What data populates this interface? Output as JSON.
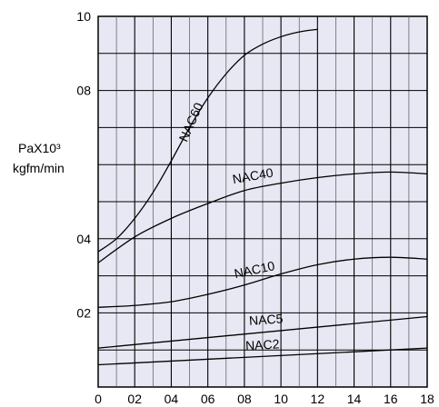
{
  "chart_data": {
    "type": "line",
    "title": "",
    "xlabel": "",
    "ylabel": "PaX10³",
    "ylabel_unit": "kgfm/min",
    "xlim": [
      0,
      18
    ],
    "ylim": [
      0,
      10
    ],
    "grid": true,
    "background_color": "#e8e8f4",
    "x_ticks": [
      {
        "value": 0,
        "label": "0"
      },
      {
        "value": 2,
        "label": "02"
      },
      {
        "value": 4,
        "label": "04"
      },
      {
        "value": 6,
        "label": "06"
      },
      {
        "value": 8,
        "label": "08"
      },
      {
        "value": 10,
        "label": "10"
      },
      {
        "value": 12,
        "label": "12"
      },
      {
        "value": 14,
        "label": "14"
      },
      {
        "value": 16,
        "label": "16"
      },
      {
        "value": 18,
        "label": "18"
      }
    ],
    "y_ticks": [
      {
        "value": 2,
        "label": "02"
      },
      {
        "value": 4,
        "label": "04"
      },
      {
        "value": 8,
        "label": "08"
      },
      {
        "value": 10,
        "label": "10"
      }
    ],
    "series": [
      {
        "name": "NAC60",
        "x": [
          0,
          1,
          2,
          3,
          4,
          5,
          6,
          7,
          8,
          9,
          10,
          11,
          12
        ],
        "y": [
          3.65,
          4.0,
          4.55,
          5.25,
          6.1,
          7.0,
          7.8,
          8.45,
          8.95,
          9.25,
          9.45,
          9.58,
          9.65
        ]
      },
      {
        "name": "NAC40",
        "x": [
          0,
          2,
          4,
          6,
          8,
          10,
          12,
          14,
          16,
          18
        ],
        "y": [
          3.35,
          4.05,
          4.55,
          4.95,
          5.3,
          5.5,
          5.65,
          5.75,
          5.8,
          5.75
        ]
      },
      {
        "name": "NAC10",
        "x": [
          0,
          2,
          4,
          6,
          8,
          10,
          12,
          14,
          16,
          18
        ],
        "y": [
          2.15,
          2.2,
          2.3,
          2.5,
          2.75,
          3.05,
          3.3,
          3.45,
          3.5,
          3.45
        ]
      },
      {
        "name": "NAC5",
        "x": [
          0,
          18
        ],
        "y": [
          1.05,
          1.9
        ]
      },
      {
        "name": "NAC2",
        "x": [
          0,
          18
        ],
        "y": [
          0.6,
          1.05
        ]
      }
    ]
  }
}
